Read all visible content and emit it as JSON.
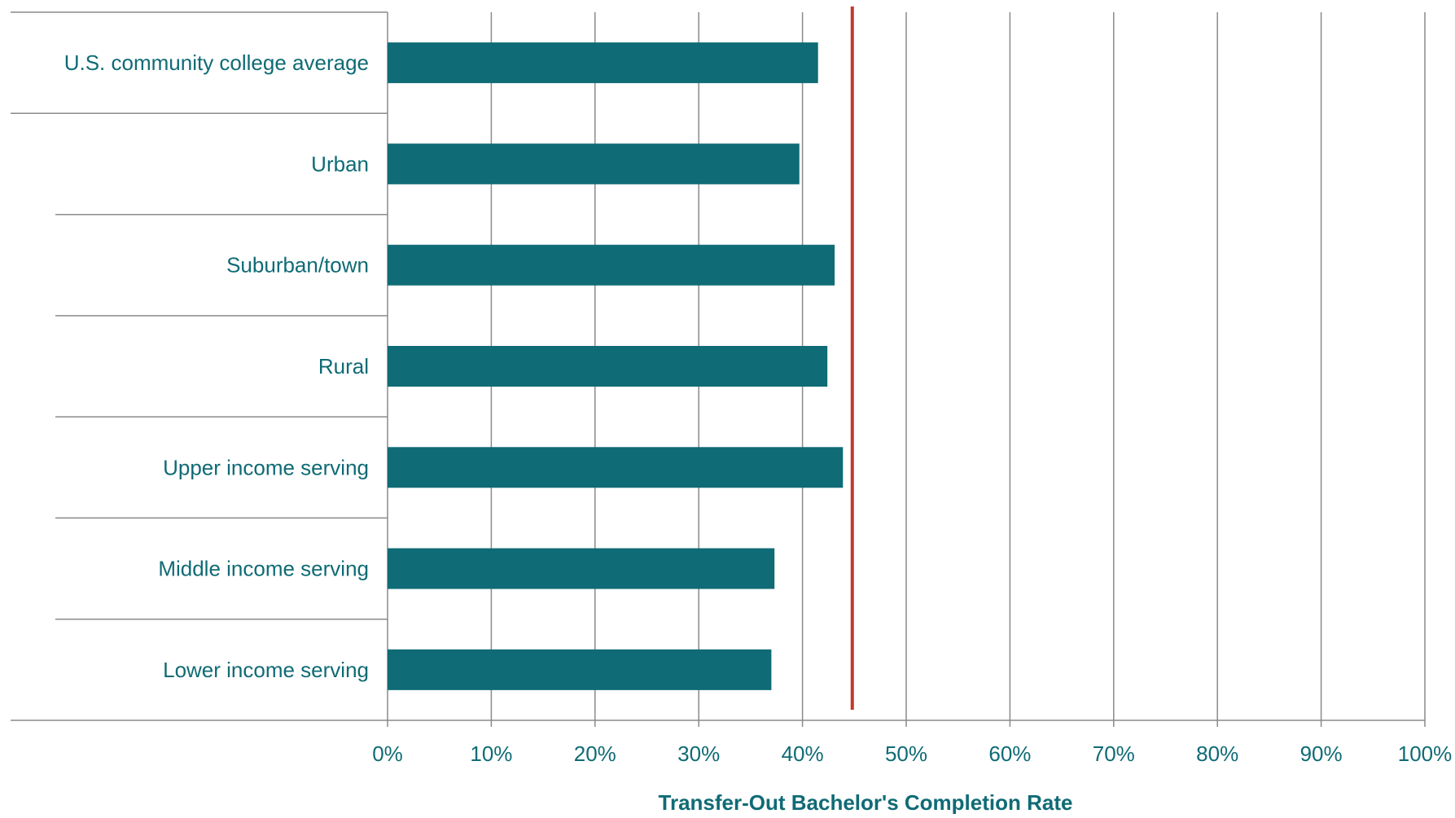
{
  "chart_data": {
    "type": "bar",
    "orientation": "horizontal",
    "categories": [
      "U.S. community college average",
      "Urban",
      "Suburban/town",
      "Rural",
      "Upper income serving",
      "Middle income serving",
      "Lower income serving"
    ],
    "values": [
      41.5,
      39.7,
      43.1,
      42.4,
      43.9,
      37.3,
      37.0
    ],
    "reference_line": 44.8,
    "xlim": [
      0,
      100
    ],
    "xticks": [
      0,
      10,
      20,
      30,
      40,
      50,
      60,
      70,
      80,
      90,
      100
    ],
    "xtick_labels": [
      "0%",
      "10%",
      "20%",
      "30%",
      "40%",
      "50%",
      "60%",
      "70%",
      "80%",
      "90%",
      "100%"
    ],
    "title": "",
    "xlabel": "Transfer-Out Bachelor's Completion Rate",
    "ylabel": "",
    "grid": "vertical",
    "legend": "none",
    "colors": {
      "bar": "#0f6b75",
      "reference_line": "#c0392b",
      "text": "#0f6b75",
      "grid": "#8a8a8a"
    }
  }
}
